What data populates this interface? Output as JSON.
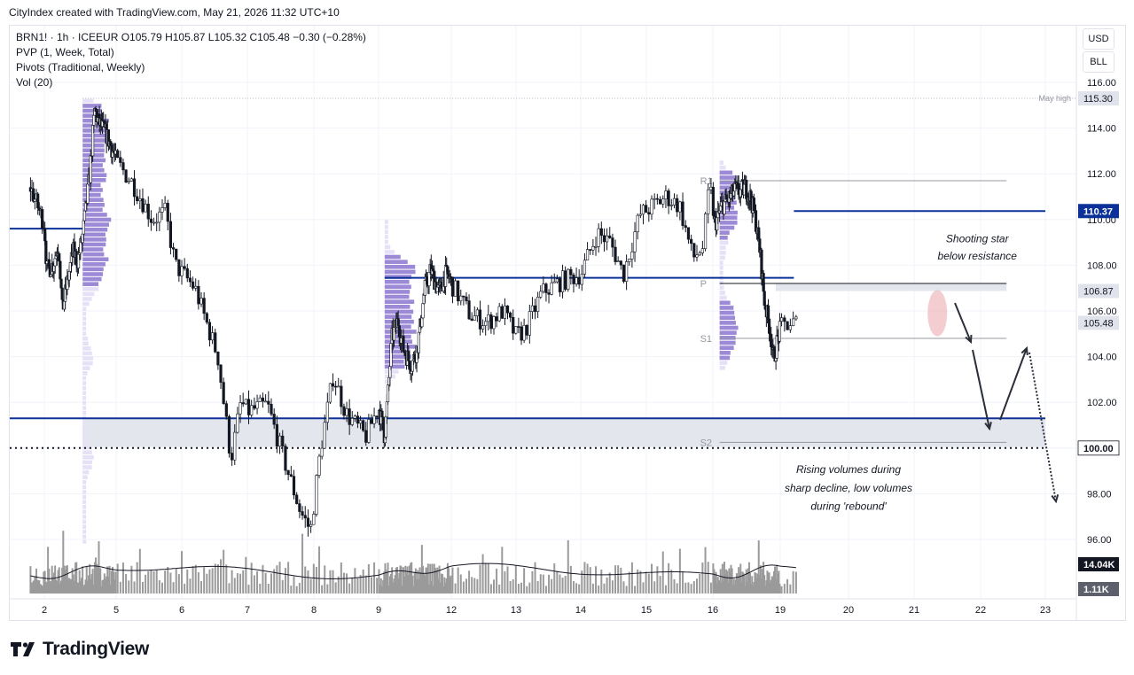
{
  "attribution": "CityIndex created with TradingView.com, May 21, 2026 11:32 UTC+10",
  "legend": {
    "symbol_line": "BRN1! · 1h · ICEEUR  O105.79  H105.87  L105.32  C105.48  −0.30 (−0.28%)",
    "indicator1": "PVP (1, Week, Total)",
    "indicator2": "Pivots (Traditional, Weekly)",
    "indicator3": "Vol (20)"
  },
  "currency_buttons": [
    "USD",
    "BLL"
  ],
  "brand": "TradingView",
  "icons": {
    "brand_logo": "tradingview-logo-icon"
  },
  "colors": {
    "up_candle": "#ffffff",
    "down_candle": "#131722",
    "wick": "#131722",
    "resistance_line": "#0c3299",
    "pivot_line": "#787b86",
    "profile_bar": "#9c8ad6",
    "profile_bar_light": "#e6e1f7",
    "zone_fill": "#e4e6ee",
    "annotation_circle": "#e9a4a8",
    "volume_bar": "#9a9a9a",
    "volume_ma": "#131722"
  },
  "chart_data": {
    "type": "candlestick",
    "instrument": "BRN1!",
    "interval": "1h",
    "x_tick_labels": [
      "2",
      "5",
      "6",
      "7",
      "8",
      "9",
      "12",
      "13",
      "14",
      "15",
      "16",
      "19",
      "20",
      "21",
      "22",
      "23"
    ],
    "y_tick_labels": [
      "116.00",
      "114.00",
      "112.00",
      "110.00",
      "108.00",
      "106.00",
      "104.00",
      "102.00",
      "100.00",
      "98.00",
      "96.00"
    ],
    "ylim": [
      94.5,
      117.5
    ],
    "price_labels": [
      {
        "text": "115.30",
        "value": 115.3,
        "style": "gray"
      },
      {
        "text": "110.37",
        "value": 110.37,
        "style": "navy"
      },
      {
        "text": "106.87",
        "value": 106.87,
        "style": "gray"
      },
      {
        "text": "105.48",
        "value": 105.48,
        "style": "gray"
      },
      {
        "text": "100.00",
        "value": 100.0,
        "style": "white-bold"
      }
    ],
    "volume_labels": [
      {
        "text": "14.04K",
        "style": "black"
      },
      {
        "text": "1.11K",
        "style": "darkgray"
      }
    ],
    "may_high_label": "May high",
    "pivot_labels": {
      "r1": "R1",
      "p": "P",
      "s1": "S1",
      "s2": "S2"
    },
    "pivots": [
      {
        "label": "R1",
        "value": 111.7,
        "from_day": 16.3,
        "to_day": 22.4
      },
      {
        "label": "P",
        "value": 107.2,
        "from_day": 16.3,
        "to_day": 22.4
      },
      {
        "label": "S1",
        "value": 104.8,
        "from_day": 16.3,
        "to_day": 22.4
      },
      {
        "label": "S2",
        "value": 100.25,
        "from_day": 16.3,
        "to_day": 22.4
      }
    ],
    "horizontal_lines": [
      {
        "value": 109.6,
        "from_day": 1.0,
        "to_day": 3.6,
        "kind": "resistance"
      },
      {
        "value": 107.45,
        "from_day": 9.25,
        "to_day": 19.2,
        "kind": "resistance"
      },
      {
        "value": 110.37,
        "from_day": 19.2,
        "to_day": 23.45,
        "kind": "resistance"
      },
      {
        "value": 101.3,
        "from_day": 1.0,
        "to_day": 23.45,
        "kind": "resistance"
      },
      {
        "value": 100.0,
        "from_day": 1.0,
        "to_day": 23.45,
        "kind": "dotted"
      }
    ],
    "zones": [
      {
        "from": 100.05,
        "to": 101.3,
        "from_day": 3.6,
        "to_day": 23.45
      },
      {
        "from": 106.87,
        "to": 107.2,
        "from_day": 18.8,
        "to_day": 22.4
      }
    ],
    "annotations": [
      {
        "text": "Shooting star",
        "day": 21.95,
        "value": 109.0
      },
      {
        "text": "below resistance",
        "day": 21.95,
        "value": 108.25
      },
      {
        "text": "Rising volumes during",
        "day": 20.0,
        "value": 98.9
      },
      {
        "text": "sharp decline, low volumes",
        "day": 20.0,
        "value": 98.1
      },
      {
        "text": "during 'rebound'",
        "day": 20.0,
        "value": 97.3
      }
    ],
    "price_path": [
      {
        "day": 1.6,
        "value": 111.4
      },
      {
        "day": 2.0,
        "value": 109.8
      },
      {
        "day": 2.1,
        "value": 107.8
      },
      {
        "day": 2.35,
        "value": 108.0
      },
      {
        "day": 2.6,
        "value": 108.9
      },
      {
        "day": 2.75,
        "value": 106.0
      },
      {
        "day": 2.95,
        "value": 107.2
      },
      {
        "day": 3.2,
        "value": 108.6
      },
      {
        "day": 3.4,
        "value": 108.2
      },
      {
        "day": 3.6,
        "value": 109.3
      },
      {
        "day": 3.9,
        "value": 112.0
      },
      {
        "day": 4.1,
        "value": 114.8
      },
      {
        "day": 4.25,
        "value": 114.3
      },
      {
        "day": 4.6,
        "value": 113.7
      },
      {
        "day": 4.9,
        "value": 112.9
      },
      {
        "day": 5.25,
        "value": 111.6
      },
      {
        "day": 5.55,
        "value": 110.0
      },
      {
        "day": 5.75,
        "value": 110.3
      },
      {
        "day": 5.9,
        "value": 108.0
      },
      {
        "day": 6.2,
        "value": 107.0
      },
      {
        "day": 6.55,
        "value": 104.0
      },
      {
        "day": 6.75,
        "value": 99.5
      },
      {
        "day": 6.9,
        "value": 102.0
      },
      {
        "day": 7.0,
        "value": 101.6
      },
      {
        "day": 7.3,
        "value": 101.9
      },
      {
        "day": 7.55,
        "value": 99.5
      },
      {
        "day": 7.8,
        "value": 97.2
      },
      {
        "day": 7.95,
        "value": 96.4
      },
      {
        "day": 8.1,
        "value": 99.9
      },
      {
        "day": 8.3,
        "value": 103.2
      },
      {
        "day": 8.5,
        "value": 101.5
      },
      {
        "day": 8.8,
        "value": 100.5
      },
      {
        "day": 9.0,
        "value": 101.8
      },
      {
        "day": 9.25,
        "value": 100.5
      },
      {
        "day": 9.55,
        "value": 104.8
      },
      {
        "day": 9.8,
        "value": 105.6
      },
      {
        "day": 10.0,
        "value": 104.4
      },
      {
        "day": 10.35,
        "value": 103.6
      },
      {
        "day": 10.6,
        "value": 104.4
      },
      {
        "day": 10.9,
        "value": 106.9
      },
      {
        "day": 11.15,
        "value": 107.8
      },
      {
        "day": 11.5,
        "value": 106.8
      },
      {
        "day": 11.75,
        "value": 107.6
      },
      {
        "day": 11.95,
        "value": 107.4
      },
      {
        "day": 12.3,
        "value": 105.8
      },
      {
        "day": 12.55,
        "value": 105.5
      },
      {
        "day": 12.8,
        "value": 106.0
      },
      {
        "day": 13.0,
        "value": 104.9
      },
      {
        "day": 13.15,
        "value": 105.2
      },
      {
        "day": 13.4,
        "value": 106.8
      },
      {
        "day": 13.7,
        "value": 107.3
      },
      {
        "day": 14.0,
        "value": 107.6
      },
      {
        "day": 14.25,
        "value": 109.4
      },
      {
        "day": 14.45,
        "value": 109.0
      },
      {
        "day": 14.65,
        "value": 107.6
      },
      {
        "day": 14.9,
        "value": 110.2
      },
      {
        "day": 15.3,
        "value": 111.0
      },
      {
        "day": 15.5,
        "value": 110.6
      },
      {
        "day": 15.7,
        "value": 108.3
      },
      {
        "day": 15.85,
        "value": 108.8
      },
      {
        "day": 15.95,
        "value": 111.5
      },
      {
        "day": 16.05,
        "value": 109.8
      },
      {
        "day": 16.2,
        "value": 110.0
      },
      {
        "day": 16.4,
        "value": 110.6
      },
      {
        "day": 16.6,
        "value": 110.8
      },
      {
        "day": 16.8,
        "value": 111.0
      },
      {
        "day": 17.0,
        "value": 111.3
      },
      {
        "day": 17.2,
        "value": 111.2
      },
      {
        "day": 17.45,
        "value": 111.4
      },
      {
        "day": 17.7,
        "value": 110.9
      },
      {
        "day": 17.9,
        "value": 110.0
      },
      {
        "day": 18.1,
        "value": 108.6
      },
      {
        "day": 18.3,
        "value": 106.4
      },
      {
        "day": 18.55,
        "value": 105.2
      },
      {
        "day": 18.7,
        "value": 103.8
      },
      {
        "day": 18.85,
        "value": 104.6
      },
      {
        "day": 19.05,
        "value": 105.4
      },
      {
        "day": 19.2,
        "value": 105.48
      }
    ],
    "candles_note": "rendered as hourly candles following price_path",
    "volume_profiles": [
      {
        "from_day": 3.6,
        "top": 115.3,
        "bottom": 95.8,
        "width_days": 1.45
      },
      {
        "from_day": 9.25,
        "top": 110.0,
        "bottom": 102.8,
        "width_days": 1.35
      },
      {
        "from_day": 16.3,
        "top": 112.6,
        "bottom": 103.4,
        "width_days": 0.85
      }
    ],
    "volume_ma_anchor_k": 14.04
  }
}
